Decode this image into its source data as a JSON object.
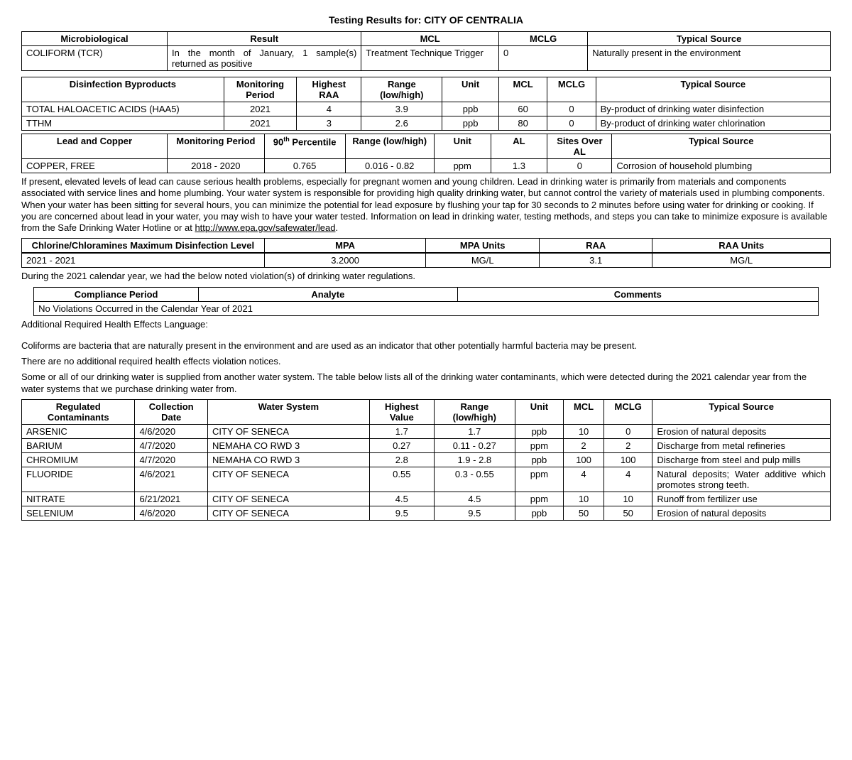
{
  "title": "Testing Results for: CITY OF CENTRALIA",
  "table1": {
    "headers": [
      "Microbiological",
      "Result",
      "MCL",
      "MCLG",
      "Typical Source"
    ],
    "row": {
      "name": "COLIFORM (TCR)",
      "result": "In the month of January, 1 sample(s) returned as positive",
      "mcl": "Treatment Technique Trigger",
      "mclg": "0",
      "source": "Naturally present in the environment"
    }
  },
  "table2": {
    "headers": [
      "Disinfection Byproducts",
      "Monitoring Period",
      "Highest RAA",
      "Range (low/high)",
      "Unit",
      "MCL",
      "MCLG",
      "Typical Source"
    ],
    "rows": [
      {
        "name": "TOTAL HALOACETIC ACIDS (HAA5)",
        "period": "2021",
        "raa": "4",
        "range": "3.9",
        "unit": "ppb",
        "mcl": "60",
        "mclg": "0",
        "source": "By-product of drinking water disinfection"
      },
      {
        "name": "TTHM",
        "period": "2021",
        "raa": "3",
        "range": "2.6",
        "unit": "ppb",
        "mcl": "80",
        "mclg": "0",
        "source": "By-product of drinking water chlorination"
      }
    ]
  },
  "table3": {
    "headers": [
      "Lead and Copper",
      "Monitoring Period",
      "90th Percentile",
      "Range (low/high)",
      "Unit",
      "AL",
      "Sites Over AL",
      "Typical Source"
    ],
    "row": {
      "name": "COPPER, FREE",
      "period": "2018 - 2020",
      "pct": "0.765",
      "range": "0.016 - 0.82",
      "unit": "ppm",
      "al": "1.3",
      "sites": "0",
      "source": "Corrosion of household plumbing"
    }
  },
  "lead_text": "If present, elevated levels of lead can cause serious health problems, especially for pregnant women and young children. Lead in drinking water is primarily from materials and components associated with service lines and home plumbing. Your water system is responsible for providing high quality drinking water, but cannot control the variety of materials used in plumbing components. When your water has been sitting for several hours, you can minimize the potential for lead exposure by flushing your tap for 30 seconds to 2 minutes before using water for drinking or cooking. If you are concerned about lead in your water, you may wish to have your water tested. Information on lead in drinking water, testing methods, and steps you can take to minimize exposure is available from the Safe Drinking Water Hotline or at ",
  "lead_link": "http://www.epa.gov/safewater/lead",
  "table4": {
    "headers": [
      "Chlorine/Chloramines Maximum Disinfection Level",
      "MPA",
      "MPA Units",
      "RAA",
      "RAA Units"
    ],
    "row": {
      "period": "2021 - 2021",
      "mpa": "3.2000",
      "mpau": "MG/L",
      "raa": "3.1",
      "raau": "MG/L"
    }
  },
  "violations_intro": "During the 2021 calendar year, we had the below noted violation(s) of drinking water regulations.",
  "table5": {
    "headers": [
      "Compliance Period",
      "Analyte",
      "Comments"
    ],
    "row": "No Violations Occurred in the Calendar Year of 2021"
  },
  "health_heading": "Additional Required Health Effects Language:",
  "coliform_text": "Coliforms are bacteria that are naturally present in the environment and are used as an indicator that other potentially harmful bacteria may be present.",
  "no_additional": "There are no additional required health effects violation notices.",
  "supplied_text": "Some or all of our drinking water is supplied from another water system. The table below lists all of the drinking water contaminants, which were detected during the 2021 calendar year from the water systems that we purchase drinking water from.",
  "table6": {
    "headers": [
      "Regulated Contaminants",
      "Collection Date",
      "Water System",
      "Highest Value",
      "Range (low/high)",
      "Unit",
      "MCL",
      "MCLG",
      "Typical Source"
    ],
    "rows": [
      {
        "name": "ARSENIC",
        "date": "4/6/2020",
        "sys": "CITY OF SENECA",
        "hv": "1.7",
        "range": "1.7",
        "unit": "ppb",
        "mcl": "10",
        "mclg": "0",
        "source": "Erosion of natural deposits"
      },
      {
        "name": "BARIUM",
        "date": "4/7/2020",
        "sys": "NEMAHA CO RWD 3",
        "hv": "0.27",
        "range": "0.11 - 0.27",
        "unit": "ppm",
        "mcl": "2",
        "mclg": "2",
        "source": "Discharge from metal refineries"
      },
      {
        "name": "CHROMIUM",
        "date": "4/7/2020",
        "sys": "NEMAHA CO RWD 3",
        "hv": "2.8",
        "range": "1.9 - 2.8",
        "unit": "ppb",
        "mcl": "100",
        "mclg": "100",
        "source": "Discharge from steel and pulp mills"
      },
      {
        "name": "FLUORIDE",
        "date": "4/6/2021",
        "sys": "CITY OF SENECA",
        "hv": "0.55",
        "range": "0.3 - 0.55",
        "unit": "ppm",
        "mcl": "4",
        "mclg": "4",
        "source": "Natural deposits; Water additive which promotes strong teeth."
      },
      {
        "name": "NITRATE",
        "date": "6/21/2021",
        "sys": "CITY OF SENECA",
        "hv": "4.5",
        "range": "4.5",
        "unit": "ppm",
        "mcl": "10",
        "mclg": "10",
        "source": "Runoff from fertilizer use"
      },
      {
        "name": "SELENIUM",
        "date": "4/6/2020",
        "sys": "CITY OF SENECA",
        "hv": "9.5",
        "range": "9.5",
        "unit": "ppb",
        "mcl": "50",
        "mclg": "50",
        "source": "Erosion of natural deposits"
      }
    ]
  }
}
